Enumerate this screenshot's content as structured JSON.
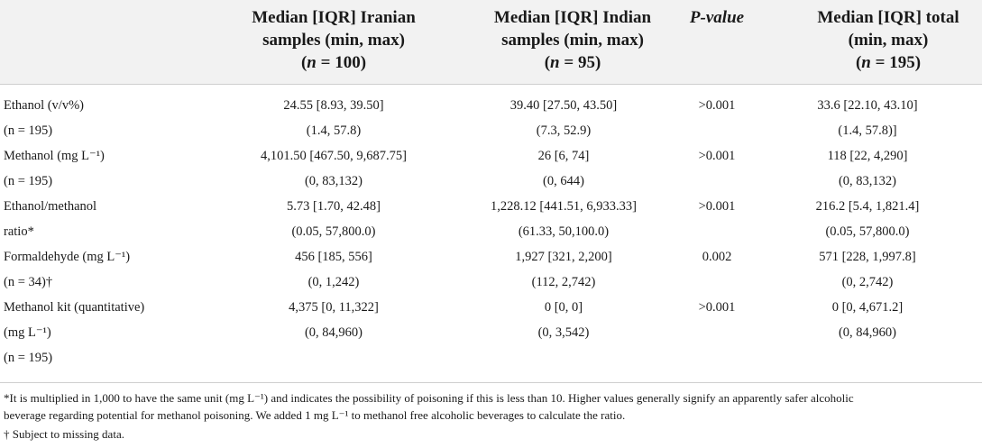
{
  "header": {
    "col1": [
      "Median [IQR] Iranian",
      "samples (min, max)"
    ],
    "col2": [
      "Median [IQR] Indian",
      "samples (min, max)"
    ],
    "col3": "P-value",
    "col4": [
      "Median [IQR] total",
      "(min, max)"
    ],
    "n_var": "n",
    "n_iranian": "= 100",
    "n_indian": "= 95",
    "n_total": "= 195"
  },
  "rows": [
    [
      "Ethanol (v/v%)",
      "24.55 [8.93, 39.50]",
      "39.40 [27.50, 43.50]",
      ">0.001",
      "33.6 [22.10, 43.10]"
    ],
    [
      "(n = 195)",
      "(1.4, 57.8)",
      "(7.3, 52.9)",
      "",
      "(1.4, 57.8)]"
    ],
    [
      "Methanol (mg L⁻¹)",
      "4,101.50 [467.50, 9,687.75]",
      "26 [6, 74]",
      ">0.001",
      "118 [22, 4,290]"
    ],
    [
      "(n = 195)",
      "(0, 83,132)",
      "(0, 644)",
      "",
      "(0, 83,132)"
    ],
    [
      "Ethanol/methanol",
      "5.73 [1.70, 42.48]",
      "1,228.12 [441.51, 6,933.33]",
      ">0.001",
      "216.2 [5.4, 1,821.4]"
    ],
    [
      "ratio*",
      "(0.05, 57,800.0)",
      "(61.33, 50,100.0)",
      "",
      "(0.05, 57,800.0)"
    ],
    [
      "Formaldehyde (mg L⁻¹)",
      "456 [185, 556]",
      "1,927 [321, 2,200]",
      "0.002",
      "571 [228, 1,997.8]"
    ],
    [
      "(n = 34)†",
      "(0, 1,242)",
      "(112, 2,742)",
      "",
      "(0, 2,742)"
    ],
    [
      "Methanol kit (quantitative)",
      "4,375 [0, 11,322]",
      "0 [0, 0]",
      ">0.001",
      "0 [0, 4,671.2]"
    ],
    [
      "(mg L⁻¹)",
      "(0, 84,960)",
      "(0, 3,542)",
      "",
      "(0, 84,960)"
    ],
    [
      "(n = 195)",
      "",
      "",
      "",
      ""
    ]
  ],
  "footnotes": {
    "line1": "*It is multiplied in 1,000 to have the same unit (mg L⁻¹) and indicates the possibility of poisoning if this is less than 10. Higher values generally signify an apparently safer alcoholic",
    "line2": "beverage regarding potential for methanol poisoning. We added 1 mg L⁻¹ to methanol free alcoholic beverages to calculate the ratio.",
    "line3": "† Subject to missing data."
  }
}
